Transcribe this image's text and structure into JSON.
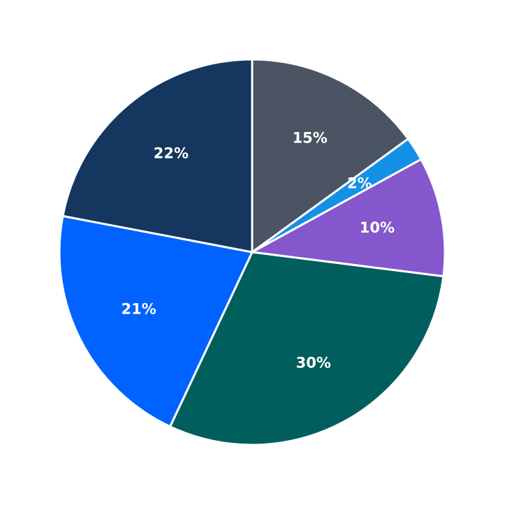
{
  "chart_data": {
    "type": "pie",
    "values": [
      15,
      2,
      10,
      30,
      21,
      22
    ],
    "value_labels": [
      "15%",
      "2%",
      "10%",
      "30%",
      "21%",
      "22%"
    ],
    "colors": [
      "#4a5462",
      "#1490e6",
      "#8457cc",
      "#005e5d",
      "#0063ff",
      "#15375f"
    ]
  }
}
